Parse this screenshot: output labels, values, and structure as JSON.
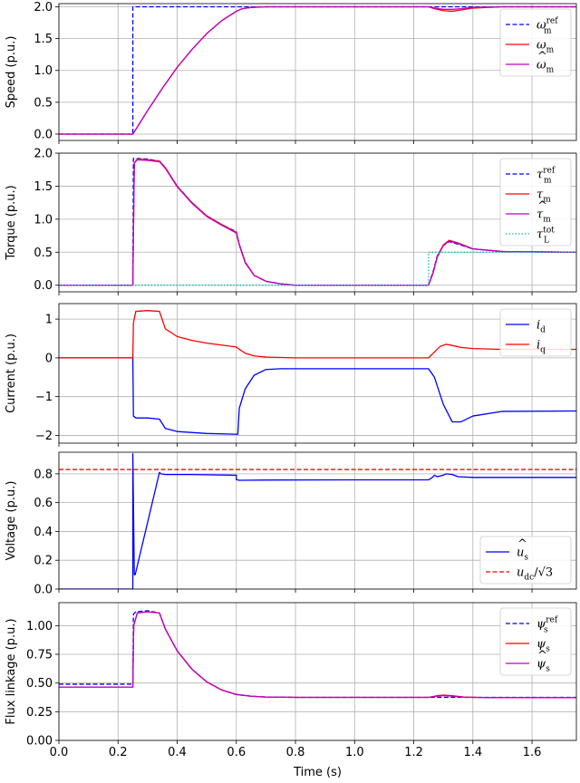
{
  "chart_data": {
    "type": "line",
    "xlabel": "Time (s)",
    "xlim": [
      0,
      1.75
    ],
    "xticks": [
      0.0,
      0.2,
      0.4,
      0.6,
      0.8,
      1.0,
      1.2,
      1.4,
      1.6
    ],
    "xtick_labels": [
      "0.0",
      "0.2",
      "0.4",
      "0.6",
      "0.8",
      "1.0",
      "1.2",
      "1.4",
      "1.6"
    ],
    "grid": true,
    "panels": [
      {
        "ylabel": "Speed (p.u.)",
        "ylim": [
          -0.1,
          2.05
        ],
        "yticks": [
          0.0,
          0.5,
          1.0,
          1.5,
          2.0
        ],
        "ytick_labels": [
          "0.0",
          "0.5",
          "1.0",
          "1.5",
          "2.0"
        ],
        "legend_position": "top-right",
        "series": [
          {
            "name": "ω_m^ref",
            "label_main": "ω",
            "label_sub": "m",
            "label_sup": "ref",
            "hat": false,
            "color": "#0000ff",
            "dash": "dashed",
            "x": [
              0,
              0.25,
              0.25,
              1.75
            ],
            "y": [
              0,
              0,
              2.0,
              2.0
            ]
          },
          {
            "name": "ω_m",
            "label_main": "ω",
            "label_sub": "m",
            "label_sup": "",
            "hat": false,
            "color": "#ff0000",
            "dash": "solid",
            "x": [
              0,
              0.25,
              0.3,
              0.35,
              0.4,
              0.45,
              0.5,
              0.55,
              0.6,
              0.62,
              0.65,
              0.7,
              0.8,
              1.0,
              1.2,
              1.25,
              1.27,
              1.3,
              1.33,
              1.36,
              1.4,
              1.5,
              1.75
            ],
            "y": [
              0,
              0,
              0.37,
              0.72,
              1.05,
              1.33,
              1.58,
              1.78,
              1.93,
              1.97,
              1.99,
              2.0,
              2.0,
              2.0,
              2.0,
              2.0,
              1.97,
              1.94,
              1.93,
              1.95,
              1.98,
              2.0,
              2.0
            ]
          },
          {
            "name": "ω̂_m",
            "label_main": "ω",
            "label_sub": "m",
            "label_sup": "",
            "hat": true,
            "color": "#bf00bf",
            "dash": "solid",
            "x": [
              0,
              0.25,
              0.3,
              0.35,
              0.4,
              0.45,
              0.5,
              0.55,
              0.6,
              0.62,
              0.65,
              0.7,
              0.8,
              1.0,
              1.2,
              1.25,
              1.27,
              1.3,
              1.33,
              1.36,
              1.4,
              1.5,
              1.75
            ],
            "y": [
              0,
              0,
              0.37,
              0.72,
              1.05,
              1.33,
              1.58,
              1.78,
              1.93,
              1.97,
              1.99,
              2.0,
              2.0,
              2.0,
              2.0,
              2.0,
              1.98,
              1.96,
              1.96,
              1.97,
              1.99,
              2.0,
              2.0
            ]
          }
        ]
      },
      {
        "ylabel": "Torque (p.u.)",
        "ylim": [
          -0.1,
          2.0
        ],
        "yticks": [
          0.0,
          0.5,
          1.0,
          1.5,
          2.0
        ],
        "ytick_labels": [
          "0.0",
          "0.5",
          "1.0",
          "1.5",
          "2.0"
        ],
        "legend_position": "top-right",
        "series": [
          {
            "name": "τ_m^ref",
            "label_main": "τ",
            "label_sub": "m",
            "label_sup": "ref",
            "hat": false,
            "color": "#0000ff",
            "dash": "dashed",
            "x": [
              0,
              0.25,
              0.252,
              0.26,
              0.3,
              0.34,
              0.36,
              0.4,
              0.45,
              0.5,
              0.55,
              0.6,
              0.61,
              0.63,
              0.66,
              0.7,
              0.75,
              0.8,
              1.0,
              1.25,
              1.265,
              1.28,
              1.3,
              1.32,
              1.35,
              1.4,
              1.5,
              1.75
            ],
            "y": [
              0,
              0,
              1.92,
              1.92,
              1.91,
              1.88,
              1.78,
              1.5,
              1.25,
              1.05,
              0.92,
              0.81,
              0.62,
              0.35,
              0.15,
              0.06,
              0.02,
              0.0,
              0.0,
              0.0,
              0.2,
              0.45,
              0.6,
              0.66,
              0.62,
              0.55,
              0.51,
              0.5
            ]
          },
          {
            "name": "τ_m",
            "label_main": "τ",
            "label_sub": "m",
            "label_sup": "",
            "hat": false,
            "color": "#ff0000",
            "dash": "solid",
            "x": [
              0,
              0.25,
              0.255,
              0.265,
              0.3,
              0.34,
              0.36,
              0.4,
              0.45,
              0.5,
              0.55,
              0.6,
              0.61,
              0.63,
              0.66,
              0.7,
              0.75,
              0.8,
              1.0,
              1.25,
              1.265,
              1.28,
              1.3,
              1.32,
              1.35,
              1.4,
              1.5,
              1.75
            ],
            "y": [
              0,
              0,
              1.85,
              1.91,
              1.9,
              1.88,
              1.78,
              1.5,
              1.25,
              1.05,
              0.92,
              0.8,
              0.62,
              0.35,
              0.15,
              0.06,
              0.02,
              0.0,
              0.0,
              0.0,
              0.18,
              0.44,
              0.61,
              0.68,
              0.64,
              0.55,
              0.51,
              0.5
            ]
          },
          {
            "name": "τ̂_m",
            "label_main": "τ",
            "label_sub": "m",
            "label_sup": "",
            "hat": true,
            "color": "#bf00bf",
            "dash": "solid",
            "x": [
              0,
              0.25,
              0.255,
              0.265,
              0.3,
              0.34,
              0.36,
              0.4,
              0.45,
              0.5,
              0.55,
              0.6,
              0.61,
              0.63,
              0.66,
              0.7,
              0.75,
              0.8,
              1.0,
              1.25,
              1.265,
              1.28,
              1.3,
              1.32,
              1.35,
              1.4,
              1.5,
              1.75
            ],
            "y": [
              0,
              0,
              1.85,
              1.9,
              1.89,
              1.87,
              1.77,
              1.49,
              1.24,
              1.04,
              0.91,
              0.79,
              0.61,
              0.34,
              0.15,
              0.06,
              0.02,
              0.0,
              0.0,
              0.0,
              0.18,
              0.43,
              0.6,
              0.67,
              0.63,
              0.55,
              0.51,
              0.5
            ]
          },
          {
            "name": "τ_L^tot",
            "label_main": "τ",
            "label_sub": "L",
            "label_sup": "tot",
            "hat": false,
            "color": "#00bfbf",
            "dash": "dotted",
            "x": [
              0,
              1.25,
              1.25,
              1.75
            ],
            "y": [
              0,
              0,
              0.5,
              0.5
            ]
          }
        ]
      },
      {
        "ylabel": "Current (p.u.)",
        "ylim": [
          -2.2,
          1.4
        ],
        "yticks": [
          -2,
          -1,
          0,
          1
        ],
        "ytick_labels": [
          "−2",
          "−1",
          "0",
          "1"
        ],
        "legend_position": "top-right",
        "series": [
          {
            "name": "i_d",
            "label_main": "i",
            "label_sub": "d",
            "label_sup": "",
            "hat": false,
            "color": "#0000ff",
            "dash": "solid",
            "x": [
              0,
              0.25,
              0.252,
              0.26,
              0.3,
              0.34,
              0.36,
              0.4,
              0.5,
              0.6,
              0.605,
              0.61,
              0.63,
              0.66,
              0.7,
              0.75,
              0.8,
              1.0,
              1.25,
              1.27,
              1.3,
              1.33,
              1.36,
              1.4,
              1.5,
              1.75
            ],
            "y": [
              0,
              0,
              -1.5,
              -1.55,
              -1.55,
              -1.58,
              -1.82,
              -1.9,
              -1.95,
              -1.97,
              -1.97,
              -1.3,
              -0.8,
              -0.45,
              -0.3,
              -0.28,
              -0.28,
              -0.28,
              -0.28,
              -0.5,
              -1.2,
              -1.65,
              -1.65,
              -1.5,
              -1.38,
              -1.37
            ]
          },
          {
            "name": "i_q",
            "label_main": "i",
            "label_sub": "q",
            "label_sup": "",
            "hat": false,
            "color": "#ff0000",
            "dash": "solid",
            "x": [
              0,
              0.25,
              0.252,
              0.26,
              0.3,
              0.34,
              0.36,
              0.4,
              0.45,
              0.5,
              0.55,
              0.6,
              0.61,
              0.63,
              0.66,
              0.7,
              0.8,
              1.0,
              1.25,
              1.27,
              1.29,
              1.31,
              1.33,
              1.36,
              1.4,
              1.5,
              1.75
            ],
            "y": [
              0,
              0,
              0.9,
              1.2,
              1.22,
              1.2,
              0.75,
              0.55,
              0.45,
              0.38,
              0.33,
              0.28,
              0.22,
              0.12,
              0.05,
              0.02,
              0.0,
              0.0,
              0.0,
              0.15,
              0.3,
              0.35,
              0.32,
              0.27,
              0.24,
              0.22,
              0.22
            ]
          }
        ]
      },
      {
        "ylabel": "Voltage (p.u.)",
        "ylim": [
          0,
          0.95
        ],
        "yticks": [
          0.0,
          0.2,
          0.4,
          0.6,
          0.8
        ],
        "ytick_labels": [
          "0.0",
          "0.2",
          "0.4",
          "0.6",
          "0.8"
        ],
        "legend_position": "bottom-right",
        "series": [
          {
            "name": "û_s",
            "label_main": "u",
            "label_sub": "s",
            "label_sup": "",
            "hat": true,
            "color": "#0000ff",
            "dash": "solid",
            "x": [
              0,
              0.25,
              0.25,
              0.255,
              0.258,
              0.34,
              0.345,
              0.36,
              0.45,
              0.6,
              0.6,
              0.61,
              0.7,
              1.0,
              1.25,
              1.26,
              1.27,
              1.28,
              1.3,
              1.31,
              1.33,
              1.35,
              1.4,
              1.5,
              1.75
            ],
            "y": [
              0,
              0,
              0.94,
              0.1,
              0.1,
              0.81,
              0.8,
              0.795,
              0.795,
              0.79,
              0.76,
              0.755,
              0.757,
              0.758,
              0.758,
              0.77,
              0.79,
              0.78,
              0.79,
              0.8,
              0.795,
              0.78,
              0.775,
              0.775,
              0.775
            ]
          },
          {
            "name": "u_dc/√3",
            "label_main": "u",
            "label_sub": "dc",
            "label_sup": "",
            "label_suffix": "/√3",
            "hat": false,
            "color": "#ff0000",
            "dash": "dashed",
            "x": [
              0,
              1.75
            ],
            "y": [
              0.83,
              0.83
            ]
          }
        ]
      },
      {
        "ylabel": "Flux linkage (p.u.)",
        "ylim": [
          0,
          1.2
        ],
        "yticks": [
          0.0,
          0.25,
          0.5,
          0.75,
          1.0
        ],
        "ytick_labels": [
          "0.00",
          "0.25",
          "0.50",
          "0.75",
          "1.00"
        ],
        "legend_position": "top-right",
        "series": [
          {
            "name": "ψ_s^ref",
            "label_main": "ψ",
            "label_sub": "s",
            "label_sup": "ref",
            "hat": false,
            "color": "#0000ff",
            "dash": "dashed",
            "x": [
              0,
              0.25,
              0.252,
              0.26,
              0.3,
              0.34,
              0.36,
              0.4,
              0.45,
              0.5,
              0.55,
              0.6,
              0.65,
              0.7,
              0.8,
              1.0,
              1.75
            ],
            "y": [
              0.49,
              0.49,
              1.1,
              1.12,
              1.13,
              1.11,
              0.97,
              0.78,
              0.62,
              0.51,
              0.44,
              0.4,
              0.385,
              0.378,
              0.375,
              0.375,
              0.375
            ]
          },
          {
            "name": "ψ_s",
            "label_main": "ψ",
            "label_sub": "s",
            "label_sup": "",
            "hat": false,
            "color": "#ff0000",
            "dash": "solid",
            "x": [
              0,
              0.25,
              0.253,
              0.265,
              0.3,
              0.34,
              0.36,
              0.4,
              0.45,
              0.5,
              0.55,
              0.6,
              0.65,
              0.7,
              0.8,
              1.0,
              1.25,
              1.28,
              1.3,
              1.33,
              1.37,
              1.45,
              1.75
            ],
            "y": [
              0.465,
              0.465,
              1.0,
              1.11,
              1.12,
              1.11,
              0.97,
              0.78,
              0.62,
              0.51,
              0.44,
              0.4,
              0.385,
              0.378,
              0.375,
              0.375,
              0.375,
              0.39,
              0.395,
              0.39,
              0.378,
              0.373,
              0.372
            ]
          },
          {
            "name": "ψ̂_s",
            "label_main": "ψ",
            "label_sub": "s",
            "label_sup": "",
            "hat": true,
            "color": "#bf00bf",
            "dash": "solid",
            "x": [
              0,
              0.25,
              0.253,
              0.265,
              0.3,
              0.34,
              0.36,
              0.4,
              0.45,
              0.5,
              0.55,
              0.6,
              0.65,
              0.7,
              0.8,
              1.0,
              1.25,
              1.28,
              1.3,
              1.33,
              1.37,
              1.45,
              1.75
            ],
            "y": [
              0.465,
              0.465,
              1.0,
              1.11,
              1.12,
              1.11,
              0.97,
              0.78,
              0.62,
              0.51,
              0.44,
              0.4,
              0.385,
              0.378,
              0.375,
              0.375,
              0.375,
              0.385,
              0.39,
              0.385,
              0.376,
              0.373,
              0.372
            ]
          }
        ]
      }
    ]
  }
}
